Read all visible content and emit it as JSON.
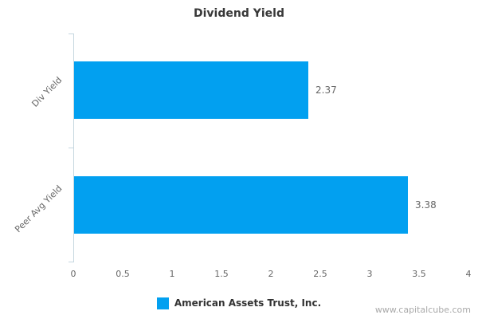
{
  "title": "Dividend Yield",
  "chart_data": {
    "type": "bar",
    "orientation": "horizontal",
    "title": "Dividend Yield",
    "categories": [
      "Div Yield",
      "Peer Avg Yield"
    ],
    "series": [
      {
        "name": "American Assets Trust, Inc.",
        "values": [
          2.37,
          3.38
        ]
      }
    ],
    "value_labels": [
      "2.37",
      "3.38"
    ],
    "xlim": [
      0,
      4
    ],
    "xticks": [
      "0",
      "0.5",
      "1",
      "1.5",
      "2",
      "2.5",
      "3",
      "3.5",
      "4"
    ],
    "xlabel": "",
    "ylabel": "",
    "grid": false,
    "legend_position": "bottom",
    "bar_color": "#02a0f0",
    "axis_color": "#c6d7e0"
  },
  "legend": {
    "label": "American Assets Trust, Inc.",
    "swatch_color": "#02a0f0"
  },
  "watermark": "www.capitalcube.com"
}
